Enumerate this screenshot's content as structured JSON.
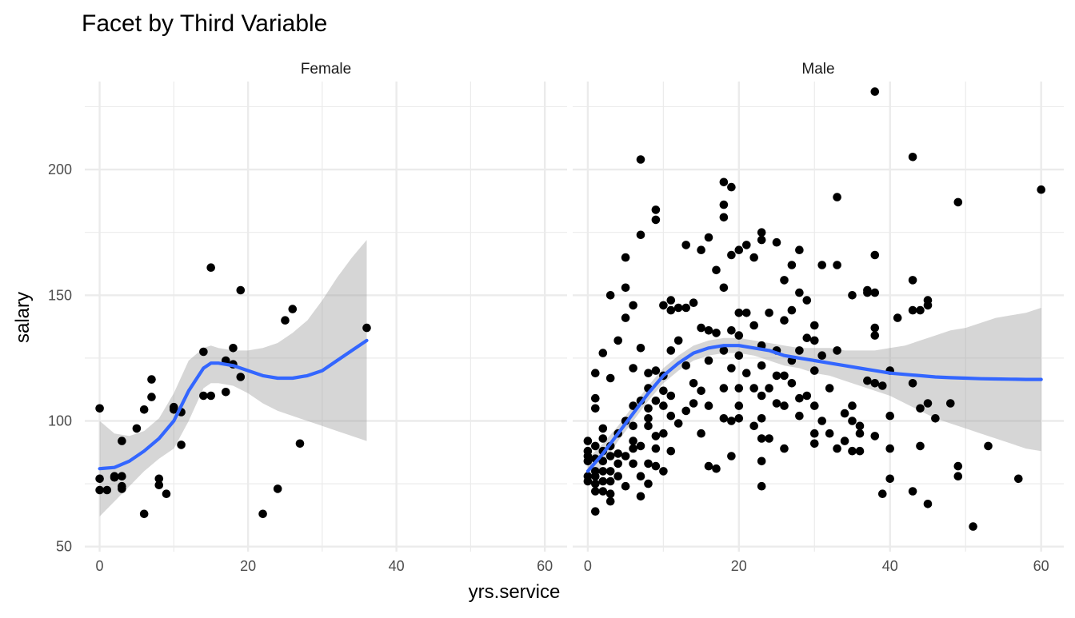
{
  "chart_data": {
    "type": "scatter",
    "title": "Facet by Third Variable",
    "xlabel": "yrs.service",
    "ylabel": "salary",
    "xlim": [
      -2,
      63
    ],
    "ylim": [
      48,
      235
    ],
    "x_ticks": [
      "0",
      "20",
      "40",
      "60"
    ],
    "y_ticks": [
      "50",
      "100",
      "150",
      "200"
    ],
    "grid": true,
    "colors": {
      "points": "#000000",
      "smooth": "#3366ff",
      "ribbon": "#999999",
      "grid": "#ebebeb"
    },
    "facets": [
      {
        "label": "Female",
        "points": [
          [
            0,
            105
          ],
          [
            0,
            77
          ],
          [
            0,
            72.5
          ],
          [
            1,
            72.5
          ],
          [
            2,
            78
          ],
          [
            2,
            77.5
          ],
          [
            3,
            92
          ],
          [
            3,
            78
          ],
          [
            3,
            74
          ],
          [
            3,
            73
          ],
          [
            5,
            97
          ],
          [
            6,
            104.5
          ],
          [
            6,
            63
          ],
          [
            7,
            116.5
          ],
          [
            7,
            109.5
          ],
          [
            8,
            77
          ],
          [
            8,
            74.5
          ],
          [
            9,
            71
          ],
          [
            10,
            105.5
          ],
          [
            10,
            104.5
          ],
          [
            11,
            103.5
          ],
          [
            11,
            90.5
          ],
          [
            14,
            127.5
          ],
          [
            14,
            110
          ],
          [
            15,
            161
          ],
          [
            15,
            110
          ],
          [
            17,
            124
          ],
          [
            17,
            111.5
          ],
          [
            18,
            129
          ],
          [
            18,
            122.5
          ],
          [
            19,
            152
          ],
          [
            19,
            117.5
          ],
          [
            22,
            63
          ],
          [
            24,
            73
          ],
          [
            25,
            140
          ],
          [
            26,
            144.5
          ],
          [
            27,
            91
          ],
          [
            36,
            137
          ]
        ],
        "smooth": {
          "x": [
            0,
            2,
            4,
            6,
            8,
            10,
            12,
            14,
            15,
            16,
            18,
            20,
            22,
            24,
            26,
            28,
            30,
            32,
            34,
            36
          ],
          "y": [
            81,
            81.5,
            84,
            88,
            93,
            100,
            112,
            121,
            123,
            123,
            122,
            120,
            118,
            117,
            117,
            118,
            120,
            124,
            128,
            132
          ],
          "lower": [
            62,
            68,
            74,
            80,
            85,
            89,
            100,
            113,
            115,
            115,
            114,
            111,
            107,
            104,
            102,
            100,
            98,
            96,
            94,
            92
          ],
          "upper": [
            100,
            95,
            94,
            96,
            101,
            111,
            124,
            129,
            130,
            129,
            128,
            128,
            129,
            131,
            135,
            140,
            148,
            157,
            165,
            172
          ]
        }
      },
      {
        "label": "Male",
        "points": [
          [
            0,
            92
          ],
          [
            0,
            88
          ],
          [
            0,
            86
          ],
          [
            0,
            84
          ],
          [
            0,
            78
          ],
          [
            0,
            76
          ],
          [
            1,
            119
          ],
          [
            1,
            109
          ],
          [
            1,
            105
          ],
          [
            1,
            90
          ],
          [
            1,
            85
          ],
          [
            1,
            80
          ],
          [
            1,
            78
          ],
          [
            1,
            75
          ],
          [
            1,
            72
          ],
          [
            1,
            64
          ],
          [
            2,
            127
          ],
          [
            2,
            97
          ],
          [
            2,
            93
          ],
          [
            2,
            88
          ],
          [
            2,
            84
          ],
          [
            2,
            80
          ],
          [
            2,
            76
          ],
          [
            2,
            72
          ],
          [
            3,
            150
          ],
          [
            3,
            117
          ],
          [
            3,
            90
          ],
          [
            3,
            86
          ],
          [
            3,
            80
          ],
          [
            3,
            76
          ],
          [
            3,
            71
          ],
          [
            3,
            68
          ],
          [
            4,
            132
          ],
          [
            4,
            95
          ],
          [
            4,
            87
          ],
          [
            4,
            83
          ],
          [
            4,
            78
          ],
          [
            5,
            165
          ],
          [
            5,
            153
          ],
          [
            5,
            141
          ],
          [
            5,
            100
          ],
          [
            5,
            86
          ],
          [
            5,
            74
          ],
          [
            6,
            146
          ],
          [
            6,
            121
          ],
          [
            6,
            106
          ],
          [
            6,
            98
          ],
          [
            6,
            92
          ],
          [
            6,
            89
          ],
          [
            6,
            83
          ],
          [
            7,
            204
          ],
          [
            7,
            174
          ],
          [
            7,
            129
          ],
          [
            7,
            108
          ],
          [
            7,
            90
          ],
          [
            7,
            78
          ],
          [
            7,
            70
          ],
          [
            8,
            119
          ],
          [
            8,
            113
          ],
          [
            8,
            105
          ],
          [
            8,
            101
          ],
          [
            8,
            98
          ],
          [
            8,
            83
          ],
          [
            8,
            75
          ],
          [
            9,
            184
          ],
          [
            9,
            180
          ],
          [
            9,
            120
          ],
          [
            9,
            108
          ],
          [
            9,
            94
          ],
          [
            9,
            89
          ],
          [
            9,
            82
          ],
          [
            10,
            146
          ],
          [
            10,
            118
          ],
          [
            10,
            112
          ],
          [
            10,
            106
          ],
          [
            10,
            95
          ],
          [
            10,
            80
          ],
          [
            11,
            148
          ],
          [
            11,
            144
          ],
          [
            11,
            128
          ],
          [
            11,
            110
          ],
          [
            11,
            102
          ],
          [
            11,
            88
          ],
          [
            12,
            145
          ],
          [
            12,
            132
          ],
          [
            12,
            99
          ],
          [
            13,
            170
          ],
          [
            13,
            145
          ],
          [
            13,
            122
          ],
          [
            13,
            104
          ],
          [
            14,
            147
          ],
          [
            14,
            115
          ],
          [
            14,
            107
          ],
          [
            15,
            168
          ],
          [
            15,
            137
          ],
          [
            15,
            112
          ],
          [
            15,
            95
          ],
          [
            16,
            173
          ],
          [
            16,
            136
          ],
          [
            16,
            124
          ],
          [
            16,
            106
          ],
          [
            16,
            82
          ],
          [
            17,
            160
          ],
          [
            17,
            135
          ],
          [
            17,
            81
          ],
          [
            18,
            195
          ],
          [
            18,
            186
          ],
          [
            18,
            181
          ],
          [
            18,
            153
          ],
          [
            18,
            128
          ],
          [
            18,
            113
          ],
          [
            18,
            101
          ],
          [
            19,
            193
          ],
          [
            19,
            166
          ],
          [
            19,
            136
          ],
          [
            19,
            121
          ],
          [
            19,
            100
          ],
          [
            19,
            86
          ],
          [
            20,
            168
          ],
          [
            20,
            143
          ],
          [
            20,
            134
          ],
          [
            20,
            126
          ],
          [
            20,
            113
          ],
          [
            20,
            106
          ],
          [
            20,
            101
          ],
          [
            21,
            170
          ],
          [
            21,
            143
          ],
          [
            21,
            119
          ],
          [
            22,
            165
          ],
          [
            22,
            138
          ],
          [
            22,
            113
          ],
          [
            22,
            98
          ],
          [
            23,
            175
          ],
          [
            23,
            172
          ],
          [
            23,
            130
          ],
          [
            23,
            122
          ],
          [
            23,
            110
          ],
          [
            23,
            101
          ],
          [
            23,
            93
          ],
          [
            23,
            84
          ],
          [
            23,
            74
          ],
          [
            24,
            143
          ],
          [
            24,
            113
          ],
          [
            24,
            93
          ],
          [
            25,
            171
          ],
          [
            25,
            128
          ],
          [
            25,
            118
          ],
          [
            25,
            107
          ],
          [
            26,
            156
          ],
          [
            26,
            140
          ],
          [
            26,
            118
          ],
          [
            26,
            106
          ],
          [
            26,
            89
          ],
          [
            27,
            162
          ],
          [
            27,
            144
          ],
          [
            27,
            124
          ],
          [
            27,
            115
          ],
          [
            28,
            168
          ],
          [
            28,
            151
          ],
          [
            28,
            128
          ],
          [
            28,
            109
          ],
          [
            28,
            102
          ],
          [
            29,
            148
          ],
          [
            29,
            133
          ],
          [
            29,
            110
          ],
          [
            30,
            138
          ],
          [
            30,
            132
          ],
          [
            30,
            120
          ],
          [
            30,
            106
          ],
          [
            30,
            95
          ],
          [
            30,
            91
          ],
          [
            31,
            162
          ],
          [
            31,
            126
          ],
          [
            31,
            100
          ],
          [
            32,
            113
          ],
          [
            32,
            95
          ],
          [
            33,
            189
          ],
          [
            33,
            162
          ],
          [
            33,
            128
          ],
          [
            33,
            89
          ],
          [
            34,
            103
          ],
          [
            34,
            92
          ],
          [
            35,
            150
          ],
          [
            35,
            106
          ],
          [
            35,
            100
          ],
          [
            35,
            88
          ],
          [
            36,
            98
          ],
          [
            36,
            95
          ],
          [
            36,
            88
          ],
          [
            37,
            152
          ],
          [
            37,
            151
          ],
          [
            37,
            116
          ],
          [
            38,
            231
          ],
          [
            38,
            166
          ],
          [
            38,
            151
          ],
          [
            38,
            137
          ],
          [
            38,
            134
          ],
          [
            38,
            115
          ],
          [
            38,
            94
          ],
          [
            39,
            114
          ],
          [
            39,
            71
          ],
          [
            40,
            120
          ],
          [
            40,
            102
          ],
          [
            40,
            89
          ],
          [
            40,
            77
          ],
          [
            41,
            141
          ],
          [
            43,
            205
          ],
          [
            43,
            156
          ],
          [
            43,
            144
          ],
          [
            43,
            115
          ],
          [
            43,
            72
          ],
          [
            44,
            144
          ],
          [
            44,
            105
          ],
          [
            44,
            90
          ],
          [
            45,
            148
          ],
          [
            45,
            146
          ],
          [
            45,
            107
          ],
          [
            45,
            67
          ],
          [
            46,
            101
          ],
          [
            48,
            107
          ],
          [
            49,
            187
          ],
          [
            49,
            82
          ],
          [
            49,
            78
          ],
          [
            51,
            58
          ],
          [
            53,
            90
          ],
          [
            57,
            77
          ],
          [
            60,
            192
          ]
        ],
        "smooth": {
          "x": [
            0,
            2,
            4,
            6,
            8,
            10,
            12,
            14,
            16,
            18,
            20,
            22,
            24,
            26,
            28,
            30,
            32,
            34,
            36,
            38,
            40,
            42,
            44,
            46,
            48,
            50,
            52,
            54,
            56,
            58,
            60
          ],
          "y": [
            80,
            87,
            95,
            103,
            111,
            118,
            123,
            127,
            129,
            130,
            130,
            129,
            128,
            126,
            125,
            124,
            123,
            122,
            121,
            120,
            119,
            118.5,
            118,
            117.5,
            117.2,
            117,
            116.8,
            116.7,
            116.6,
            116.5,
            116.5
          ],
          "lower": [
            75,
            83,
            92,
            100,
            108,
            115,
            120,
            124,
            126,
            127,
            127,
            126,
            124,
            122,
            121,
            119,
            118,
            116,
            114,
            112,
            110,
            107,
            104,
            101,
            99,
            97,
            95,
            93,
            91,
            89,
            88
          ],
          "upper": [
            85,
            91,
            98,
            106,
            114,
            121,
            126,
            130,
            132,
            133,
            133,
            132,
            131,
            130,
            129,
            129,
            129,
            128,
            128,
            128,
            129,
            130,
            132,
            134,
            136,
            137,
            139,
            141,
            142,
            143,
            145
          ]
        }
      }
    ]
  }
}
